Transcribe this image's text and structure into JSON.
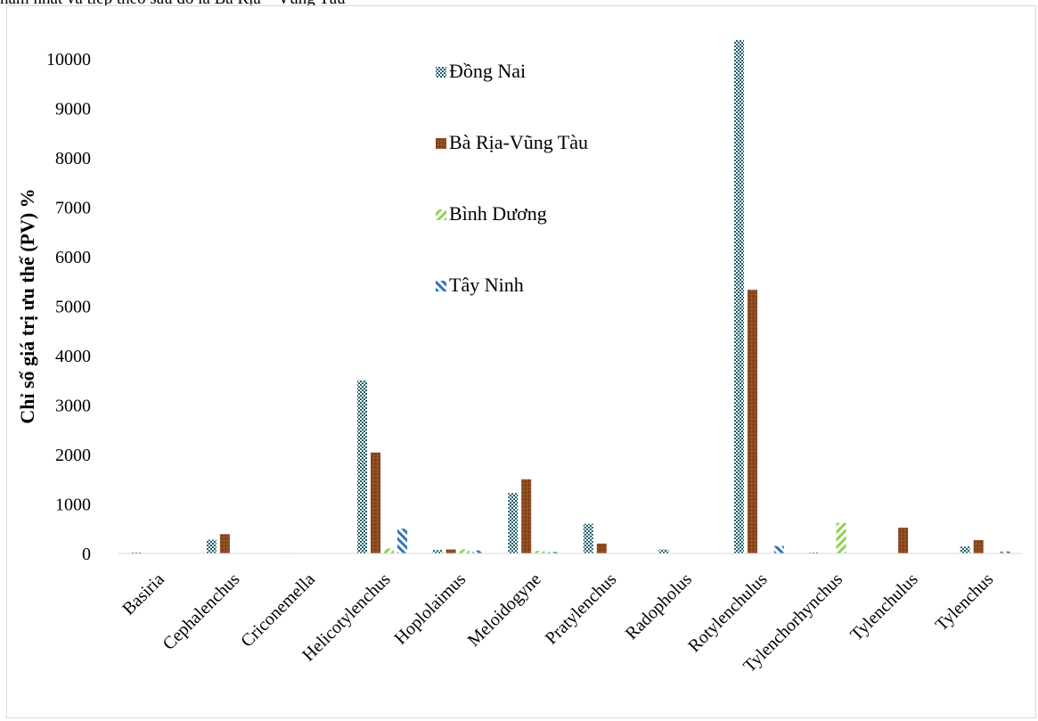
{
  "header_text": "nằm nhất và tiếp theo sau đó là Bà Rịa – Vũng Tàu",
  "chart_data": {
    "type": "bar",
    "title": "",
    "xlabel": "",
    "ylabel": "Chỉ số giá trị ưu thế (PV) %",
    "ylim": [
      0,
      10000
    ],
    "yticks": [
      0,
      1000,
      2000,
      3000,
      4000,
      5000,
      6000,
      7000,
      8000,
      9000,
      10000
    ],
    "grid": false,
    "legend_placement": "top-center",
    "categories": [
      "Basiria",
      "Cephalenchus",
      "Criconemella",
      "Helicotylenchus",
      "Hoplolaimus",
      "Meloidogyne",
      "Pratylenchus",
      "Radopholus",
      "Rotylenchulus",
      "Tylenchorhynchus",
      "Tylenchulus",
      "Tylenchus"
    ],
    "series": [
      {
        "name": "Đồng Nai",
        "color": "#1f5f6b",
        "pattern": "checker",
        "values": [
          20,
          280,
          10,
          3500,
          70,
          1220,
          600,
          80,
          10380,
          20,
          0,
          140
        ]
      },
      {
        "name": "Bà Rịa-Vũng Tàu",
        "color": "#8b4a1f",
        "pattern": "textured",
        "values": [
          0,
          390,
          0,
          2040,
          80,
          1500,
          200,
          0,
          5330,
          0,
          520,
          270
        ]
      },
      {
        "name": "Bình Dương",
        "color": "#8fd14f",
        "pattern": "diagonal",
        "values": [
          0,
          0,
          0,
          100,
          80,
          50,
          0,
          0,
          0,
          620,
          0,
          0
        ]
      },
      {
        "name": "Tây Ninh",
        "color": "#2e75b6",
        "pattern": "diagonal-reverse",
        "values": [
          0,
          0,
          0,
          500,
          60,
          30,
          0,
          0,
          150,
          0,
          0,
          40
        ]
      }
    ]
  }
}
